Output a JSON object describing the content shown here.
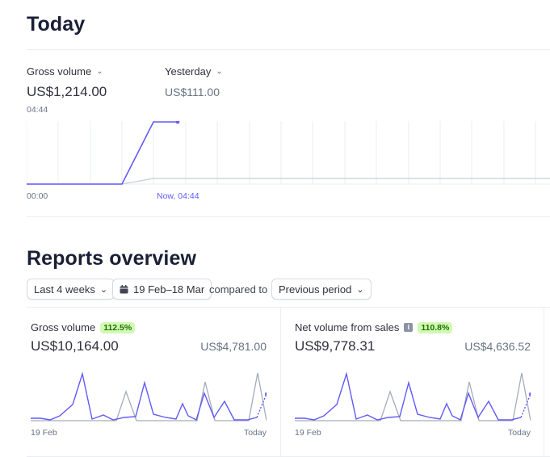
{
  "today": {
    "title": "Today",
    "gross_label": "Gross volume",
    "gross_value": "US$1,214.00",
    "gross_time": "04:44",
    "yesterday_label": "Yesterday",
    "yesterday_value": "US$111.00",
    "axis_start": "00:00",
    "axis_now": "Now, 04:44"
  },
  "reports": {
    "title": "Reports overview",
    "range_label": "Last 4 weeks",
    "date_range": "19 Feb–18 Mar",
    "compared_to": "compared to",
    "compare_label": "Previous period"
  },
  "cards": [
    {
      "title": "Gross volume",
      "badge": "112.5%",
      "value": "US$10,164.00",
      "prev_value": "US$4,781.00",
      "axis_start": "19 Feb",
      "axis_end": "Today"
    },
    {
      "title": "Net volume from sales",
      "badge": "110.8%",
      "value": "US$9,778.31",
      "prev_value": "US$4,636.52",
      "axis_start": "19 Feb",
      "axis_end": "Today"
    }
  ],
  "colors": {
    "accent": "#625afa",
    "previous": "#a3acb9",
    "badge_bg": "#d1fab3",
    "badge_fg": "#217005"
  },
  "icons": {
    "chevron": "chevron-down-icon",
    "calendar": "calendar-icon",
    "info": "info-icon"
  }
}
